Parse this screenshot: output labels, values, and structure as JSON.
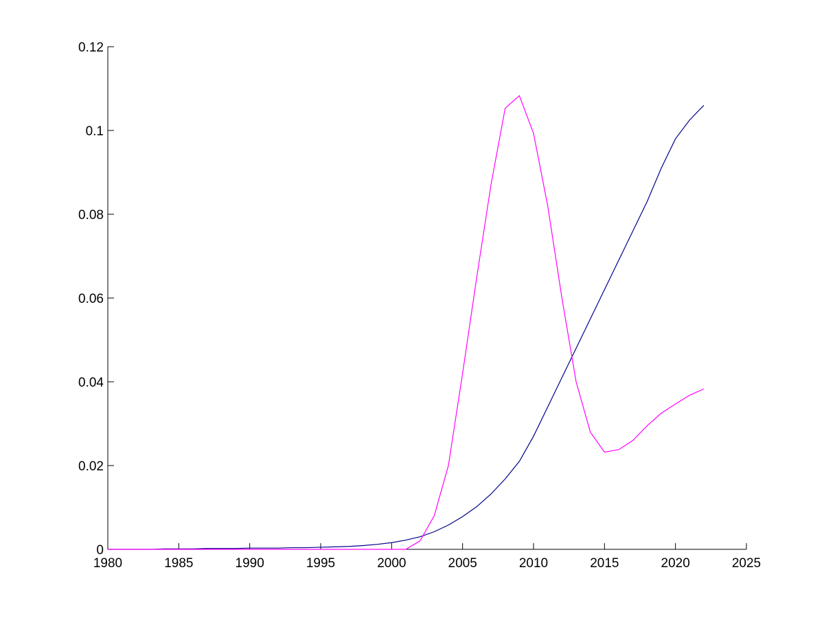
{
  "chart_data": {
    "type": "line",
    "x": [
      1980,
      1981,
      1982,
      1983,
      1984,
      1985,
      1986,
      1987,
      1988,
      1989,
      1990,
      1991,
      1992,
      1993,
      1994,
      1995,
      1996,
      1997,
      1998,
      1999,
      2000,
      2001,
      2002,
      2003,
      2004,
      2005,
      2006,
      2007,
      2008,
      2009,
      2010,
      2011,
      2012,
      2013,
      2014,
      2015,
      2016,
      2017,
      2018,
      2019,
      2020,
      2021,
      2022
    ],
    "series": [
      {
        "color": "#00008b",
        "values": [
          0,
          0,
          0,
          0,
          0.0001,
          0.0001,
          0.0001,
          0.0002,
          0.0002,
          0.0002,
          0.0003,
          0.0003,
          0.0003,
          0.0004,
          0.0004,
          0.0005,
          0.0006,
          0.0007,
          0.0009,
          0.0012,
          0.0016,
          0.0022,
          0.003,
          0.0042,
          0.0058,
          0.0078,
          0.0102,
          0.0132,
          0.0168,
          0.021,
          0.027,
          0.034,
          0.041,
          0.048,
          0.055,
          0.062,
          0.069,
          0.076,
          0.083,
          0.091,
          0.098,
          0.1025,
          0.106
        ]
      },
      {
        "color": "#ff00ff",
        "values": [
          0,
          0,
          0,
          0,
          0,
          0,
          0,
          0,
          0,
          0,
          0,
          0,
          0,
          0,
          0,
          0,
          0,
          0,
          0,
          0,
          0,
          0,
          0.002,
          0.008,
          0.02,
          0.042,
          0.065,
          0.087,
          0.1053,
          0.1083,
          0.0993,
          0.082,
          0.06,
          0.04,
          0.028,
          0.0232,
          0.0238,
          0.026,
          0.0295,
          0.0325,
          0.0347,
          0.0368,
          0.0383
        ]
      }
    ],
    "xlim": [
      1980,
      2025
    ],
    "xticks": [
      1980,
      1985,
      1990,
      1995,
      2000,
      2005,
      2010,
      2015,
      2020,
      2025
    ],
    "ylim": [
      0,
      0.12
    ],
    "yticks": [
      0,
      0.02,
      0.04,
      0.06,
      0.08,
      0.1,
      0.12
    ],
    "grid": false
  }
}
